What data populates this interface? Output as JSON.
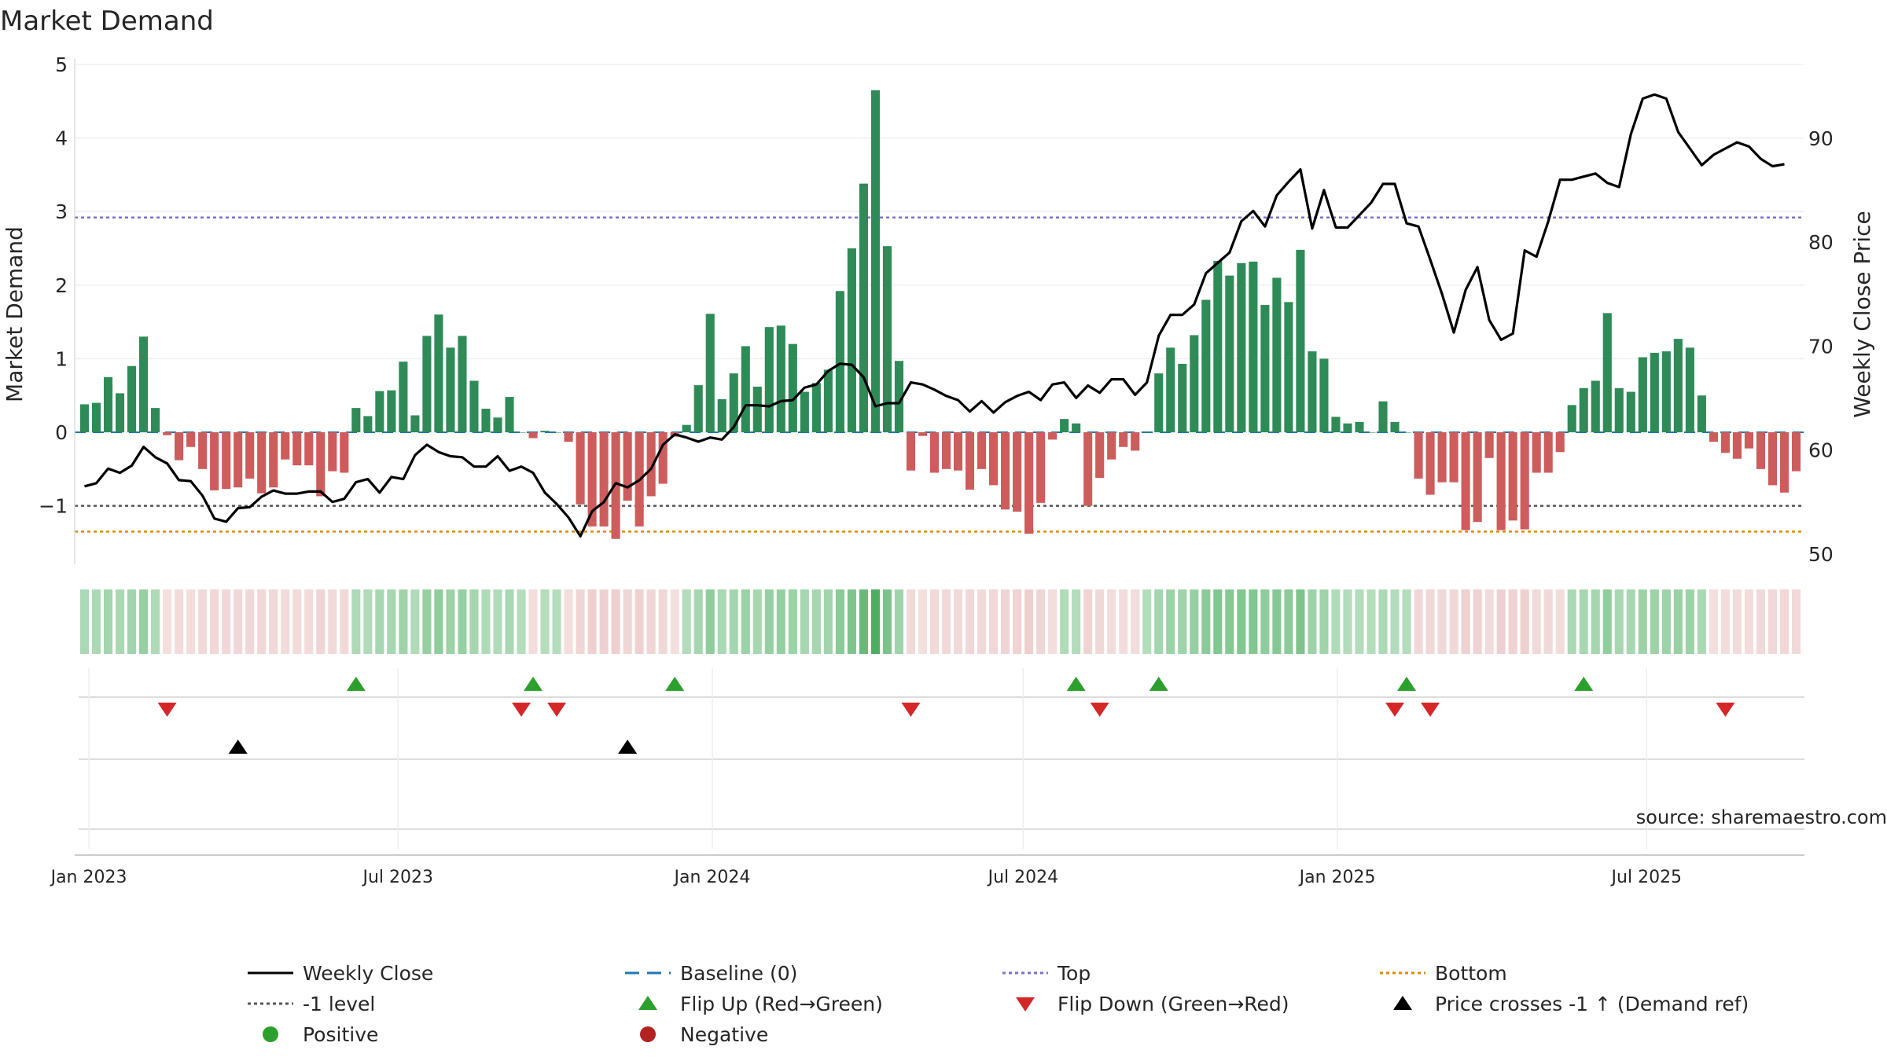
{
  "chart_data": {
    "type": "bar",
    "title": "Market Demand",
    "ylabel": "Market Demand",
    "y2label": "Weekly Close Price",
    "source": "source: sharemaestro.com",
    "ylim": [
      -1.8,
      5.0
    ],
    "y2lim": [
      49,
      98
    ],
    "yticks": [
      5,
      4,
      3,
      2,
      1,
      0,
      -1
    ],
    "yticklabels": [
      "5",
      "4",
      "3",
      "2",
      "1",
      "0",
      "−1"
    ],
    "y2ticks": [
      90,
      80,
      70,
      60,
      50
    ],
    "levels": {
      "top": 2.92,
      "bottom": -1.35,
      "minus_one": -1.0,
      "baseline": 0
    },
    "x_start": "2022-12-26",
    "x_end": "2025-09-30",
    "x_ticks": [
      {
        "date": "2023-01-01",
        "label": "Jan 2023"
      },
      {
        "date": "2023-07-01",
        "label": "Jul 2023"
      },
      {
        "date": "2024-01-01",
        "label": "Jan 2024"
      },
      {
        "date": "2024-07-01",
        "label": "Jul 2024"
      },
      {
        "date": "2025-01-01",
        "label": "Jan 2025"
      },
      {
        "date": "2025-07-01",
        "label": "Jul 2025"
      }
    ],
    "demand": [
      0.38,
      0.4,
      0.75,
      0.53,
      0.9,
      1.3,
      0.33,
      -0.04,
      -0.38,
      -0.2,
      -0.5,
      -0.79,
      -0.77,
      -0.75,
      -0.63,
      -0.83,
      -0.75,
      -0.37,
      -0.45,
      -0.45,
      -0.87,
      -0.53,
      -0.55,
      0.33,
      0.22,
      0.56,
      0.57,
      0.96,
      0.23,
      1.31,
      1.6,
      1.15,
      1.31,
      0.7,
      0.32,
      0.2,
      0.48,
      0.0,
      -0.08,
      0.02,
      0.0,
      -0.13,
      -0.98,
      -1.28,
      -1.28,
      -1.45,
      -0.93,
      -1.28,
      -0.87,
      -0.7,
      -0.06,
      0.1,
      0.64,
      1.61,
      0.45,
      0.8,
      1.17,
      0.62,
      1.43,
      1.45,
      1.2,
      0.55,
      0.67,
      0.85,
      1.92,
      2.5,
      3.38,
      4.65,
      2.53,
      0.97,
      -0.52,
      -0.05,
      -0.55,
      -0.5,
      -0.52,
      -0.78,
      -0.5,
      -0.72,
      -1.05,
      -1.08,
      -1.38,
      -0.96,
      -0.1,
      0.18,
      0.12,
      -1.0,
      -0.62,
      -0.37,
      -0.2,
      -0.25,
      0.0,
      0.8,
      1.15,
      0.93,
      1.32,
      1.8,
      2.33,
      2.13,
      2.3,
      2.32,
      1.73,
      2.1,
      1.77,
      2.48,
      1.1,
      1.0,
      0.21,
      0.12,
      0.14,
      0.0,
      0.42,
      0.14,
      0.0,
      -0.63,
      -0.85,
      -0.68,
      -0.68,
      -1.33,
      -1.22,
      -0.35,
      -1.33,
      -1.2,
      -1.32,
      -0.55,
      -0.55,
      -0.27,
      0.37,
      0.6,
      0.7,
      1.62,
      0.6,
      0.55,
      1.02,
      1.08,
      1.1,
      1.27,
      1.15,
      0.5,
      -0.13,
      -0.28,
      -0.36,
      -0.22,
      -0.5,
      -0.72,
      -0.82,
      -0.53
    ],
    "price": [
      56.5,
      56.8,
      58.2,
      57.8,
      58.5,
      60.3,
      59.3,
      58.7,
      57.1,
      57.0,
      55.6,
      53.4,
      53.1,
      54.4,
      54.5,
      55.5,
      56.1,
      55.8,
      55.8,
      56.0,
      56.0,
      55.0,
      55.3,
      56.9,
      57.2,
      55.9,
      57.4,
      57.2,
      59.5,
      60.5,
      59.8,
      59.4,
      59.3,
      58.4,
      58.4,
      59.4,
      58.0,
      58.4,
      57.8,
      55.9,
      54.8,
      53.5,
      51.7,
      54.1,
      55.0,
      56.8,
      56.4,
      57.1,
      58.2,
      60.5,
      61.5,
      61.2,
      60.8,
      61.2,
      61.0,
      62.2,
      64.3,
      64.3,
      64.2,
      64.7,
      64.8,
      66.0,
      66.3,
      67.6,
      68.3,
      68.2,
      67.0,
      64.2,
      64.5,
      64.5,
      66.5,
      66.3,
      65.8,
      65.2,
      64.8,
      63.7,
      64.7,
      63.6,
      64.6,
      65.2,
      65.6,
      64.8,
      66.3,
      66.5,
      65.0,
      66.2,
      65.5,
      66.8,
      66.8,
      65.3,
      66.5,
      71.0,
      73.0,
      73.0,
      74.0,
      77.0,
      78.0,
      79.0,
      82.0,
      83.0,
      81.5,
      84.5,
      85.8,
      87.0,
      81.3,
      85.0,
      81.4,
      81.4,
      82.6,
      83.8,
      85.6,
      85.6,
      81.8,
      81.5,
      78.3,
      75.0,
      71.3,
      75.4,
      77.6,
      72.5,
      70.6,
      71.2,
      79.2,
      78.6,
      82.0,
      86.0,
      86.0,
      86.3,
      86.6,
      85.7,
      85.3,
      90.4,
      93.8,
      94.2,
      93.8,
      90.6,
      89.0,
      87.4,
      88.4,
      89.0,
      89.6,
      89.2,
      88.0,
      87.3,
      87.5
    ],
    "flip_up": [
      23,
      38,
      50,
      84,
      91,
      112,
      127
    ],
    "flip_down": [
      7,
      37,
      40,
      70,
      86,
      111,
      114,
      139
    ],
    "price_cross_up": [
      13,
      46
    ],
    "legend": [
      {
        "label": "Weekly Close",
        "marker": "line-solid",
        "color": "#000000"
      },
      {
        "label": "Baseline (0)",
        "marker": "line-dash",
        "color": "#1f77b4"
      },
      {
        "label": "Top",
        "marker": "line-dot",
        "color": "#7b6fcf"
      },
      {
        "label": "Bottom",
        "marker": "line-dot",
        "color": "#e08a00"
      },
      {
        "label": "-1 level",
        "marker": "line-dot",
        "color": "#555555"
      },
      {
        "label": "Flip Up (Red→Green)",
        "marker": "tri-up",
        "color": "#2ca02c"
      },
      {
        "label": "Flip Down (Green→Red)",
        "marker": "tri-down",
        "color": "#d62728"
      },
      {
        "label": "Price crosses -1 ↑ (Demand ref)",
        "marker": "tri-up",
        "color": "#000000"
      },
      {
        "label": "Positive",
        "marker": "circle",
        "color": "#2ca02c"
      },
      {
        "label": "Negative",
        "marker": "circle",
        "color": "#b22222"
      }
    ],
    "colors": {
      "positive": "#2e8b57",
      "negative": "#cd5c5c",
      "line": "#000000"
    }
  }
}
